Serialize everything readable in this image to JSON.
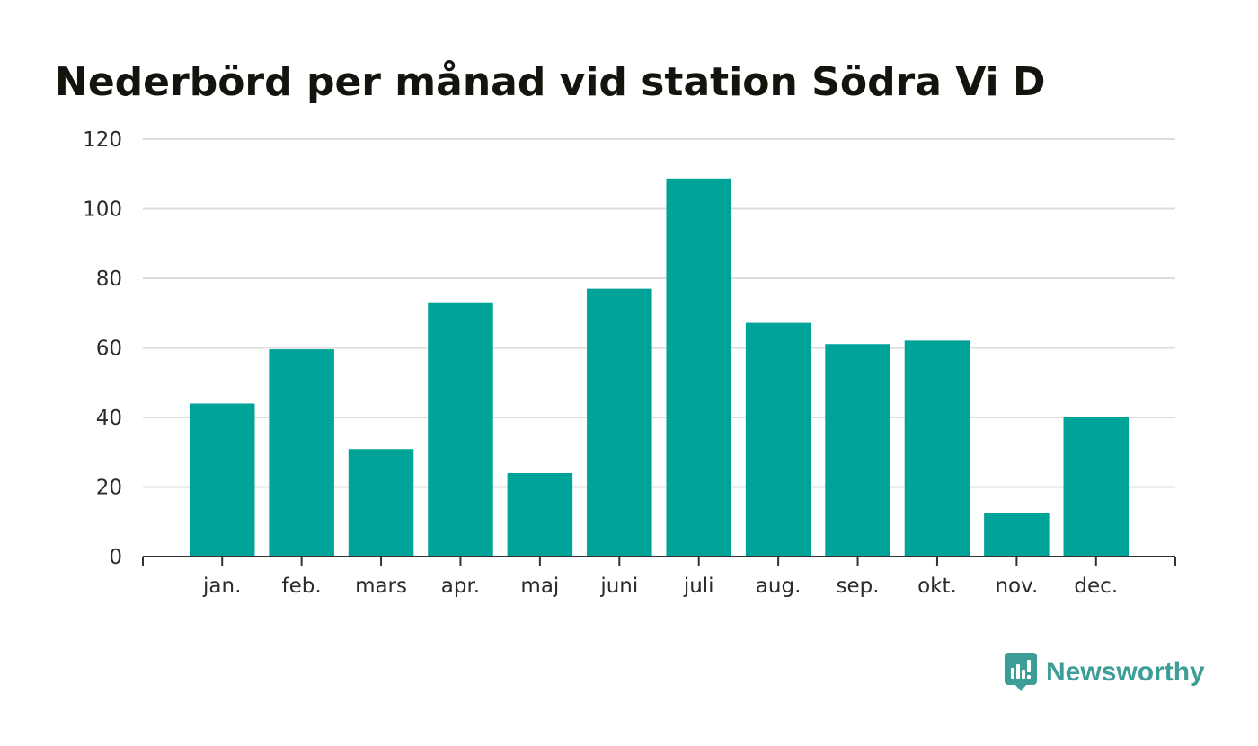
{
  "title": "Nederbörd per månad vid station Södra Vi D",
  "brand": {
    "name": "Newsworthy",
    "icon": "newsworthy-logo-icon",
    "color": "#3d9d97"
  },
  "colors": {
    "bar": "#00a397",
    "grid": "#dcdcdc",
    "axis": "#333333"
  },
  "chart_data": {
    "type": "bar",
    "title": "Nederbörd per månad vid station Södra Vi D",
    "xlabel": "",
    "ylabel": "",
    "categories": [
      "jan.",
      "feb.",
      "mars",
      "apr.",
      "maj",
      "juni",
      "juli",
      "aug.",
      "sep.",
      "okt.",
      "nov.",
      "dec."
    ],
    "values": [
      44.0,
      59.6,
      30.9,
      73.1,
      24.0,
      77.0,
      108.7,
      67.2,
      61.1,
      62.1,
      12.5,
      40.2
    ],
    "ylim": [
      0,
      120
    ],
    "yticks": [
      "0",
      "20",
      "40",
      "60",
      "80",
      "100",
      "120"
    ],
    "grid": true,
    "legend": "none"
  }
}
